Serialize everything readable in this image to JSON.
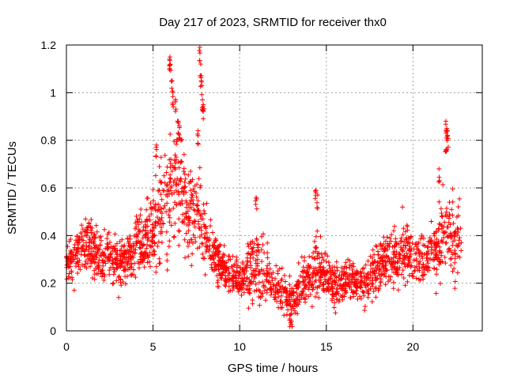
{
  "chart_data": {
    "type": "scatter",
    "title": "Day 217 of 2023, SRMTID for receiver thx0",
    "xlabel": "GPS time / hours",
    "ylabel": "SRMTID / TECUs",
    "xlim": [
      0,
      24
    ],
    "ylim": [
      0,
      1.2
    ],
    "x_ticks": [
      0,
      5,
      10,
      15,
      20
    ],
    "x_tick_labels": [
      "0",
      "5",
      "10",
      "15",
      "20"
    ],
    "y_ticks": [
      0,
      0.2,
      0.4,
      0.6,
      0.8,
      1.0,
      1.2
    ],
    "y_tick_labels": [
      "0",
      "0.2",
      "0.4",
      "0.6",
      "0.8",
      "1",
      "1.2"
    ],
    "grid": true,
    "marker": "plus",
    "color": "#ff0000",
    "envelope": {
      "x": [
        0,
        0.5,
        1,
        1.5,
        2,
        2.5,
        3,
        3.5,
        4,
        4.5,
        5,
        5.5,
        6,
        6.5,
        7,
        7.5,
        8,
        8.5,
        9,
        9.5,
        10,
        10.5,
        11,
        11.5,
        12,
        12.5,
        13,
        13.5,
        14,
        14.5,
        15,
        15.5,
        16,
        16.5,
        17,
        17.5,
        18,
        18.5,
        19,
        19.5,
        20,
        20.5,
        21,
        21.5,
        22,
        22.5,
        22.8
      ],
      "center": [
        0.29,
        0.3,
        0.36,
        0.36,
        0.3,
        0.33,
        0.28,
        0.3,
        0.35,
        0.38,
        0.42,
        0.5,
        0.58,
        0.62,
        0.48,
        0.52,
        0.38,
        0.32,
        0.26,
        0.24,
        0.22,
        0.24,
        0.28,
        0.25,
        0.2,
        0.16,
        0.12,
        0.2,
        0.22,
        0.27,
        0.22,
        0.19,
        0.2,
        0.22,
        0.2,
        0.22,
        0.27,
        0.3,
        0.29,
        0.34,
        0.3,
        0.31,
        0.3,
        0.38,
        0.42,
        0.4,
        0.38
      ],
      "spread": [
        0.05,
        0.07,
        0.08,
        0.08,
        0.07,
        0.08,
        0.07,
        0.07,
        0.09,
        0.09,
        0.12,
        0.15,
        0.2,
        0.2,
        0.13,
        0.16,
        0.1,
        0.09,
        0.07,
        0.06,
        0.06,
        0.08,
        0.1,
        0.08,
        0.07,
        0.06,
        0.05,
        0.06,
        0.07,
        0.1,
        0.07,
        0.06,
        0.06,
        0.06,
        0.06,
        0.07,
        0.08,
        0.08,
        0.08,
        0.1,
        0.07,
        0.08,
        0.08,
        0.12,
        0.14,
        0.12,
        0.1
      ],
      "n_points": 2200
    },
    "peaks": [
      {
        "x": 5.95,
        "y": 1.14
      },
      {
        "x": 5.98,
        "y": 1.15
      },
      {
        "x": 6.1,
        "y": 1.05
      },
      {
        "x": 6.15,
        "y": 1.0
      },
      {
        "x": 6.3,
        "y": 0.97
      },
      {
        "x": 6.45,
        "y": 0.88
      },
      {
        "x": 6.52,
        "y": 0.86
      },
      {
        "x": 7.7,
        "y": 1.19
      },
      {
        "x": 7.75,
        "y": 1.12
      },
      {
        "x": 7.78,
        "y": 1.05
      },
      {
        "x": 7.85,
        "y": 0.97
      },
      {
        "x": 7.9,
        "y": 0.95
      },
      {
        "x": 7.6,
        "y": 0.84
      },
      {
        "x": 5.2,
        "y": 0.78
      },
      {
        "x": 14.4,
        "y": 0.59
      },
      {
        "x": 14.5,
        "y": 0.57
      },
      {
        "x": 10.95,
        "y": 0.56
      },
      {
        "x": 21.9,
        "y": 0.88
      },
      {
        "x": 21.95,
        "y": 0.85
      },
      {
        "x": 22.0,
        "y": 0.82
      },
      {
        "x": 21.9,
        "y": 0.76
      },
      {
        "x": 21.5,
        "y": 0.68
      },
      {
        "x": 12.9,
        "y": 0.05
      },
      {
        "x": 13.0,
        "y": 0.04
      }
    ]
  }
}
